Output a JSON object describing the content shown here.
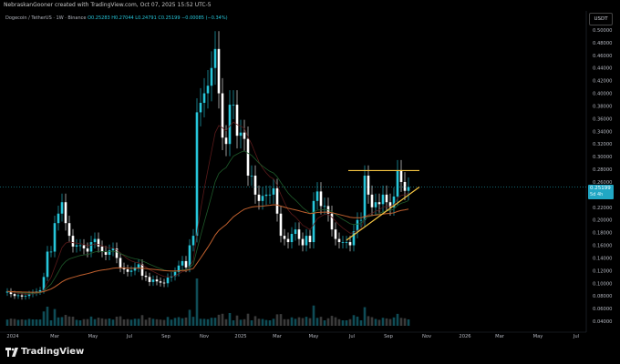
{
  "header": {
    "text": "NebraskanGooner created with TradingView.com, Oct 07, 2025 15:52 UTC-5"
  },
  "legend": {
    "symbol": "Dogecoin / TetherUS · 1W · Binance",
    "ohlc": "O0.25283 H0.27044 L0.24791 C0.25199 −0.00085 (−0.34%)"
  },
  "currency": "USDT",
  "price_badge": {
    "price": "0.25199",
    "timer": "5d 4h"
  },
  "footer": {
    "brand": "TradingView"
  },
  "colors": {
    "up": "#26c6da",
    "down": "#ffffff",
    "ema_fast": "#5a1a1a",
    "ema_mid": "#1e5a2a",
    "ema_slow": "#c0602e",
    "triangle": "#f5c542"
  },
  "chart_data": {
    "type": "candlestick",
    "ylim": [
      0.03,
      0.51
    ],
    "y_ticks": [
      "0.50000",
      "0.48000",
      "0.46000",
      "0.44000",
      "0.42000",
      "0.40000",
      "0.38000",
      "0.36000",
      "0.34000",
      "0.32000",
      "0.30000",
      "0.28000",
      "0.26000",
      "0.24000",
      "0.22000",
      "0.20000",
      "0.18000",
      "0.16000",
      "0.14000",
      "0.12000",
      "0.10000",
      "0.08000",
      "0.06000",
      "0.04000"
    ],
    "x_ticks": [
      "2024",
      "Mar",
      "May",
      "Jul",
      "Sep",
      "Nov",
      "2025",
      "Mar",
      "May",
      "Jul",
      "Sep",
      "Nov",
      "2026",
      "Mar",
      "May",
      "Jul"
    ],
    "weekly_close": [
      0.087,
      0.083,
      0.08,
      0.081,
      0.079,
      0.08,
      0.083,
      0.085,
      0.087,
      0.089,
      0.11,
      0.15,
      0.15,
      0.195,
      0.21,
      0.228,
      0.195,
      0.175,
      0.158,
      0.16,
      0.16,
      0.155,
      0.15,
      0.165,
      0.17,
      0.158,
      0.15,
      0.145,
      0.152,
      0.155,
      0.14,
      0.125,
      0.122,
      0.118,
      0.12,
      0.125,
      0.13,
      0.112,
      0.11,
      0.102,
      0.106,
      0.103,
      0.101,
      0.1,
      0.109,
      0.111,
      0.118,
      0.128,
      0.135,
      0.125,
      0.16,
      0.175,
      0.37,
      0.385,
      0.4,
      0.412,
      0.44,
      0.47,
      0.4,
      0.33,
      0.32,
      0.382,
      0.382,
      0.333,
      0.338,
      0.328,
      0.27,
      0.27,
      0.24,
      0.23,
      0.238,
      0.24,
      0.24,
      0.25,
      0.21,
      0.175,
      0.17,
      0.165,
      0.178,
      0.185,
      0.17,
      0.16,
      0.175,
      0.165,
      0.23,
      0.245,
      0.222,
      0.222,
      0.21,
      0.185,
      0.17,
      0.165,
      0.165,
      0.165,
      0.16,
      0.182,
      0.2,
      0.2,
      0.27,
      0.24,
      0.22,
      0.228,
      0.225,
      0.24,
      0.228,
      0.22,
      0.237,
      0.278,
      0.26,
      0.246,
      0.252
    ]
  }
}
